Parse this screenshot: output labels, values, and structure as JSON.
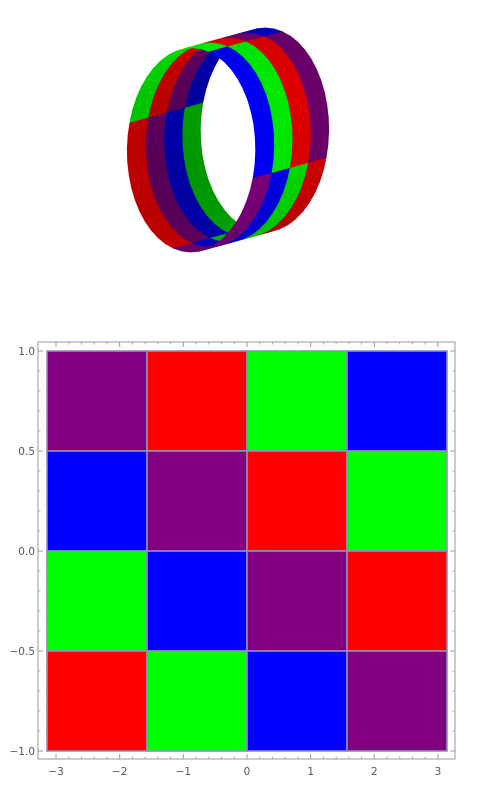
{
  "colors": {
    "purple": "#800080",
    "red": "#ff0000",
    "green": "#00ff00",
    "blue": "#0000ff",
    "cell_border": "#8e8ec0",
    "frame": "#999999",
    "tick_label": "#555555"
  },
  "surface_3d": {
    "type": "tube",
    "description_palette": [
      "red",
      "purple",
      "blue",
      "green"
    ],
    "checker_bands": 4
  },
  "chart_data": {
    "type": "heatmap",
    "title": "",
    "xlabel": "",
    "ylabel": "",
    "xlim": [
      -3.1416,
      3.1416
    ],
    "ylim": [
      -1,
      1
    ],
    "x_ticks": [
      -3,
      -2,
      -1,
      0,
      1,
      2,
      3
    ],
    "y_ticks": [
      -1.0,
      -0.5,
      0.0,
      0.5,
      1.0
    ],
    "x_tick_labels": [
      "−3",
      "−2",
      "−1",
      "0",
      "1",
      "2",
      "3"
    ],
    "y_tick_labels": [
      "−1.0",
      "−0.5",
      "0.0",
      "0.5",
      "1.0"
    ],
    "x_edges": [
      -3.1416,
      -1.5708,
      0,
      1.5708,
      3.1416
    ],
    "y_edges": [
      1,
      0.5,
      0,
      -0.5,
      -1
    ],
    "cells": [
      [
        "purple",
        "red",
        "green",
        "blue"
      ],
      [
        "blue",
        "purple",
        "red",
        "green"
      ],
      [
        "green",
        "blue",
        "purple",
        "red"
      ],
      [
        "red",
        "green",
        "blue",
        "purple"
      ]
    ],
    "grid": false,
    "legend": "none"
  }
}
